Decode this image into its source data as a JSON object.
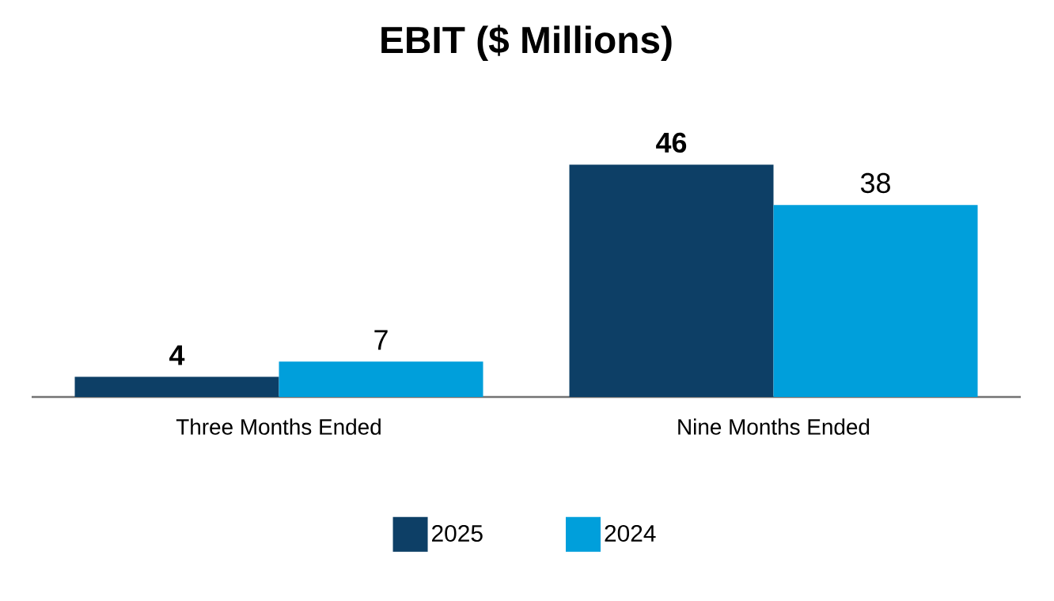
{
  "chart_data": {
    "type": "bar",
    "title": "EBIT ($ Millions)",
    "categories": [
      "Three Months Ended",
      "Nine Months Ended"
    ],
    "series": [
      {
        "name": "2025",
        "color": "#0d3f66",
        "values": [
          4,
          46
        ]
      },
      {
        "name": "2024",
        "color": "#009fdb",
        "values": [
          7,
          38
        ]
      }
    ],
    "data_labels": true,
    "legend": "bottom"
  }
}
